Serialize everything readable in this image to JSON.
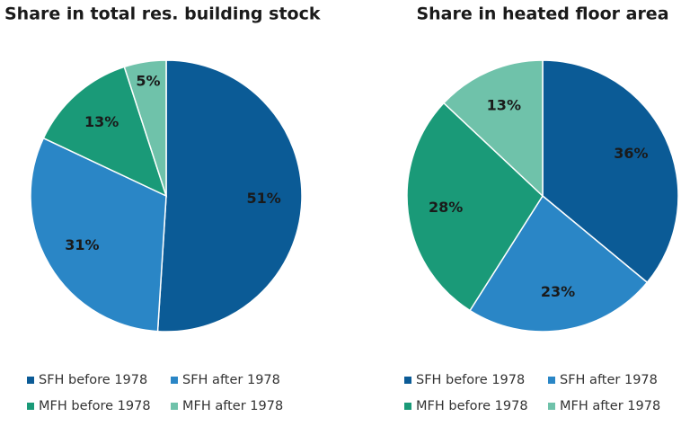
{
  "chart_data": [
    {
      "type": "pie",
      "title": "Share in total res. building stock",
      "categories": [
        "SFH before 1978",
        "SFH after 1978",
        "MFH before 1978",
        "MFH after 1978"
      ],
      "values": [
        51,
        31,
        13,
        5
      ],
      "value_labels": [
        "51%",
        "31%",
        "13%",
        "5%"
      ],
      "colors": [
        "#0b5b96",
        "#2a86c6",
        "#1a9a78",
        "#6fc2aa"
      ],
      "legend": "bottom"
    },
    {
      "type": "pie",
      "title": "Share in heated floor area",
      "categories": [
        "SFH before 1978",
        "SFH after 1978",
        "MFH before 1978",
        "MFH after 1978"
      ],
      "values": [
        36,
        23,
        28,
        13
      ],
      "value_labels": [
        "36%",
        "23%",
        "28%",
        "13%"
      ],
      "colors": [
        "#0b5b96",
        "#2a86c6",
        "#1a9a78",
        "#6fc2aa"
      ],
      "legend": "bottom"
    }
  ]
}
